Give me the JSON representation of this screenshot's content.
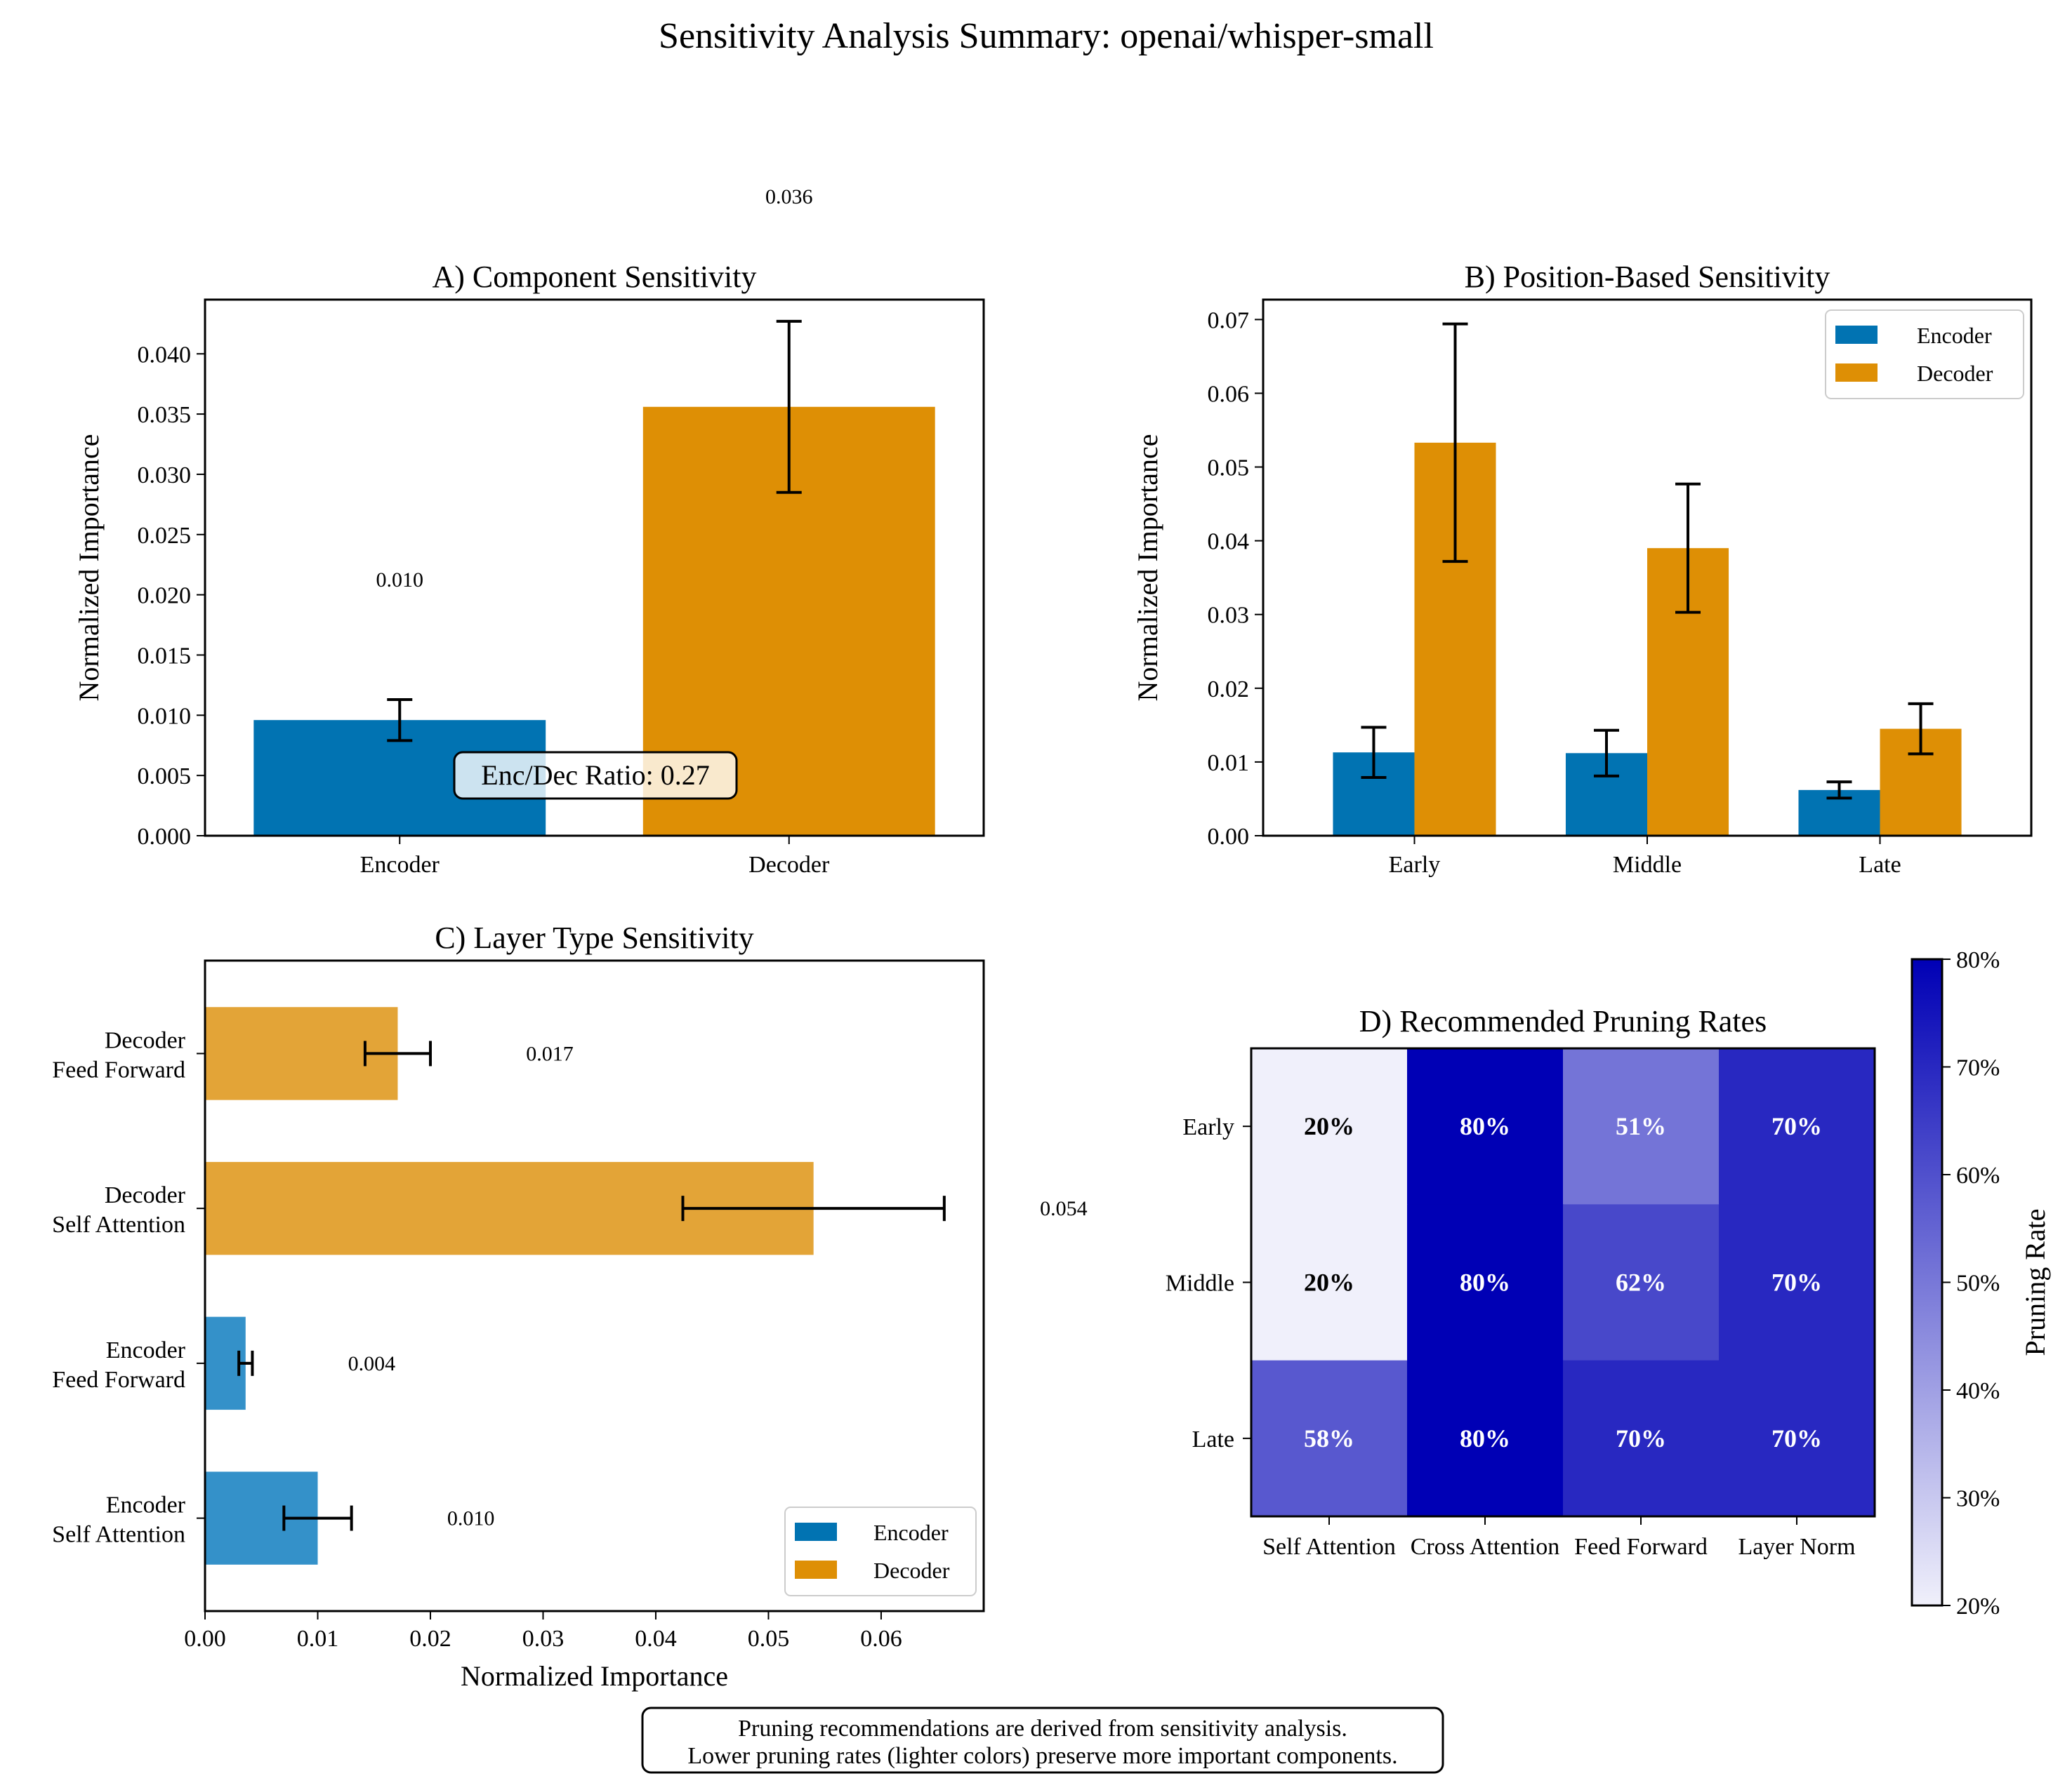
{
  "figure": {
    "title": "Sensitivity Analysis Summary: openai/whisper-small",
    "footnote_line1": "Pruning recommendations are derived from sensitivity analysis.",
    "footnote_line2": "Lower pruning rates (lighter colors) preserve more important components."
  },
  "colors": {
    "encoder": "#0173b2",
    "decoder": "#de8f05",
    "encoder_light": "#3491c9",
    "decoder_light": "#e3a437"
  },
  "chart_data": [
    {
      "id": "A",
      "type": "bar",
      "title": "A) Component Sensitivity",
      "ylabel": "Normalized Importance",
      "categories": [
        "Encoder",
        "Decoder"
      ],
      "values": [
        0.0096,
        0.0356
      ],
      "errors": [
        0.0017,
        0.0071
      ],
      "value_labels": [
        "0.010",
        "0.036"
      ],
      "ylim": [
        0,
        0.0445
      ],
      "yticks": [
        0.0,
        0.005,
        0.01,
        0.015,
        0.02,
        0.025,
        0.03,
        0.035,
        0.04
      ],
      "ytick_labels": [
        "0.000",
        "0.005",
        "0.010",
        "0.015",
        "0.020",
        "0.025",
        "0.030",
        "0.035",
        "0.040"
      ],
      "annotation": "Enc/Dec Ratio: 0.27"
    },
    {
      "id": "B",
      "type": "bar",
      "title": "B) Position-Based Sensitivity",
      "ylabel": "Normalized Importance",
      "categories": [
        "Early",
        "Middle",
        "Late"
      ],
      "series": [
        {
          "name": "Encoder",
          "values": [
            0.0113,
            0.0112,
            0.0062
          ],
          "errors": [
            0.0034,
            0.0031,
            0.0011
          ]
        },
        {
          "name": "Decoder",
          "values": [
            0.0533,
            0.039,
            0.0145
          ],
          "errors": [
            0.0161,
            0.0087,
            0.0034
          ]
        }
      ],
      "ylim": [
        0,
        0.0727
      ],
      "yticks": [
        0.0,
        0.01,
        0.02,
        0.03,
        0.04,
        0.05,
        0.06,
        0.07
      ],
      "ytick_labels": [
        "0.00",
        "0.01",
        "0.02",
        "0.03",
        "0.04",
        "0.05",
        "0.06",
        "0.07"
      ],
      "legend": "top-right"
    },
    {
      "id": "C",
      "type": "bar",
      "orientation": "horizontal",
      "title": "C) Layer Type Sensitivity",
      "xlabel": "Normalized Importance",
      "categories": [
        {
          "line1": "Encoder",
          "line2": "Self Attention",
          "group": "Encoder"
        },
        {
          "line1": "Encoder",
          "line2": "Feed Forward",
          "group": "Encoder"
        },
        {
          "line1": "Decoder",
          "line2": "Self Attention",
          "group": "Decoder"
        },
        {
          "line1": "Decoder",
          "line2": "Feed Forward",
          "group": "Decoder"
        }
      ],
      "values": [
        0.01,
        0.0036,
        0.054,
        0.0171
      ],
      "errors": [
        0.003,
        0.0006,
        0.0116,
        0.0029
      ],
      "value_labels": [
        "0.010",
        "0.004",
        "0.054",
        "0.017"
      ],
      "xlim": [
        0,
        0.0691
      ],
      "xticks": [
        0.0,
        0.01,
        0.02,
        0.03,
        0.04,
        0.05,
        0.06
      ],
      "xtick_labels": [
        "0.00",
        "0.01",
        "0.02",
        "0.03",
        "0.04",
        "0.05",
        "0.06"
      ],
      "legend": "bottom-right",
      "legend_entries": [
        "Encoder",
        "Decoder"
      ]
    },
    {
      "id": "D",
      "type": "heatmap",
      "title": "D) Recommended Pruning Rates",
      "rows": [
        "Early",
        "Middle",
        "Late"
      ],
      "columns": [
        "Self Attention",
        "Cross Attention",
        "Feed Forward",
        "Layer Norm"
      ],
      "values": [
        [
          20,
          80,
          51,
          70
        ],
        [
          20,
          80,
          62,
          70
        ],
        [
          58,
          80,
          70,
          70
        ]
      ],
      "value_labels": [
        [
          "20%",
          "80%",
          "51%",
          "70%"
        ],
        [
          "20%",
          "80%",
          "62%",
          "70%"
        ],
        [
          "58%",
          "80%",
          "70%",
          "70%"
        ]
      ],
      "vmin": 20,
      "vmax": 80,
      "colorbar_label": "Pruning Rate",
      "colorbar_ticks": [
        20,
        30,
        40,
        50,
        60,
        70,
        80
      ],
      "colorbar_tick_labels": [
        "20%",
        "30%",
        "40%",
        "50%",
        "60%",
        "70%",
        "80%"
      ],
      "colormap": [
        "#f0f0fb",
        "#0000b5"
      ]
    }
  ]
}
